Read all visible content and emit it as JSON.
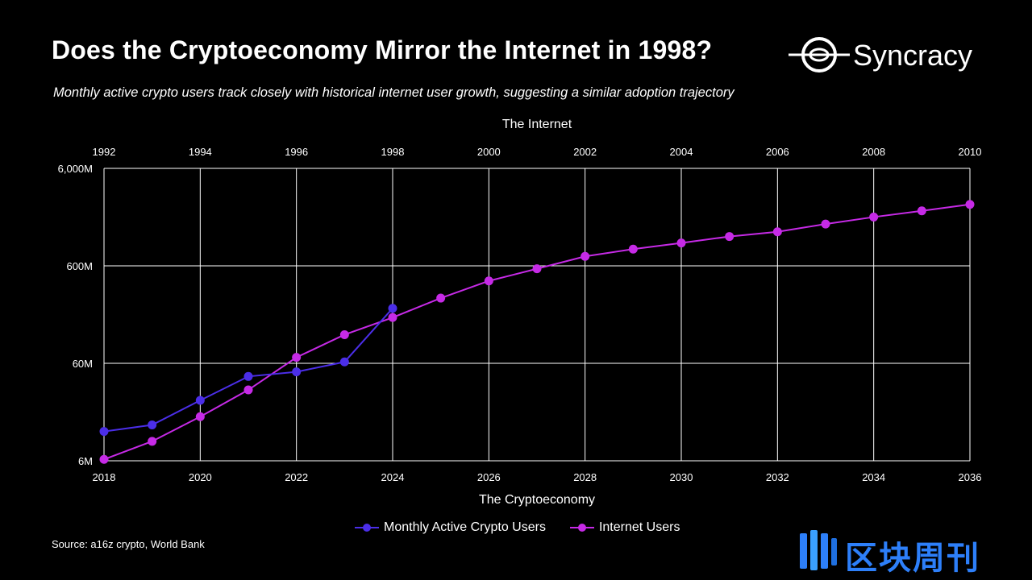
{
  "header": {
    "title": "Does the Cryptoeconomy Mirror the Internet in 1998?",
    "subtitle": "Monthly active crypto users track closely with historical internet user growth, suggesting a similar adoption trajectory",
    "logo_text": "Syncracy"
  },
  "footer": {
    "source": "Source: a16z crypto, World Bank",
    "brand_text": "区块周刊"
  },
  "colors": {
    "crypto": "#4b2ee8",
    "internet": "#c62ae6",
    "grid": "#ffffff",
    "brand": "#2d7ff9"
  },
  "chart_data": {
    "type": "line",
    "yscale": "log",
    "ylim": [
      6,
      6000
    ],
    "yticks": [
      6,
      60,
      600,
      6000
    ],
    "ytick_labels": [
      "6M",
      "60M",
      "600M",
      "6,000M"
    ],
    "xlabel_bottom": "The Cryptoeconomy",
    "xlabel_top": "The Internet",
    "x_bottom": [
      2018,
      2019,
      2020,
      2021,
      2022,
      2023,
      2024,
      2025,
      2026,
      2027,
      2028,
      2029,
      2030,
      2031,
      2032,
      2033,
      2034,
      2035,
      2036
    ],
    "x_bottom_tick_labels": [
      "2018",
      "2020",
      "2022",
      "2024",
      "2026",
      "2028",
      "2030",
      "2032",
      "2034",
      "2036"
    ],
    "x_top_tick_labels": [
      "1992",
      "1994",
      "1996",
      "1998",
      "2000",
      "2002",
      "2004",
      "2006",
      "2008",
      "2010"
    ],
    "legend_position": "bottom",
    "series": [
      {
        "name": "Monthly Active Crypto Users",
        "key": "crypto",
        "x": [
          2018,
          2019,
          2020,
          2021,
          2022,
          2023,
          2024
        ],
        "values": [
          12,
          14,
          25,
          44,
          49,
          62,
          220
        ]
      },
      {
        "name": "Internet Users",
        "key": "internet",
        "x": [
          2018,
          2019,
          2020,
          2021,
          2022,
          2023,
          2024,
          2025,
          2026,
          2027,
          2028,
          2029,
          2030,
          2031,
          2032,
          2033,
          2034,
          2035,
          2036
        ],
        "values": [
          6.2,
          9.5,
          17,
          32,
          69,
          118,
          177,
          280,
          420,
          560,
          750,
          890,
          1030,
          1200,
          1340,
          1610,
          1900,
          2200,
          2560
        ]
      }
    ]
  }
}
